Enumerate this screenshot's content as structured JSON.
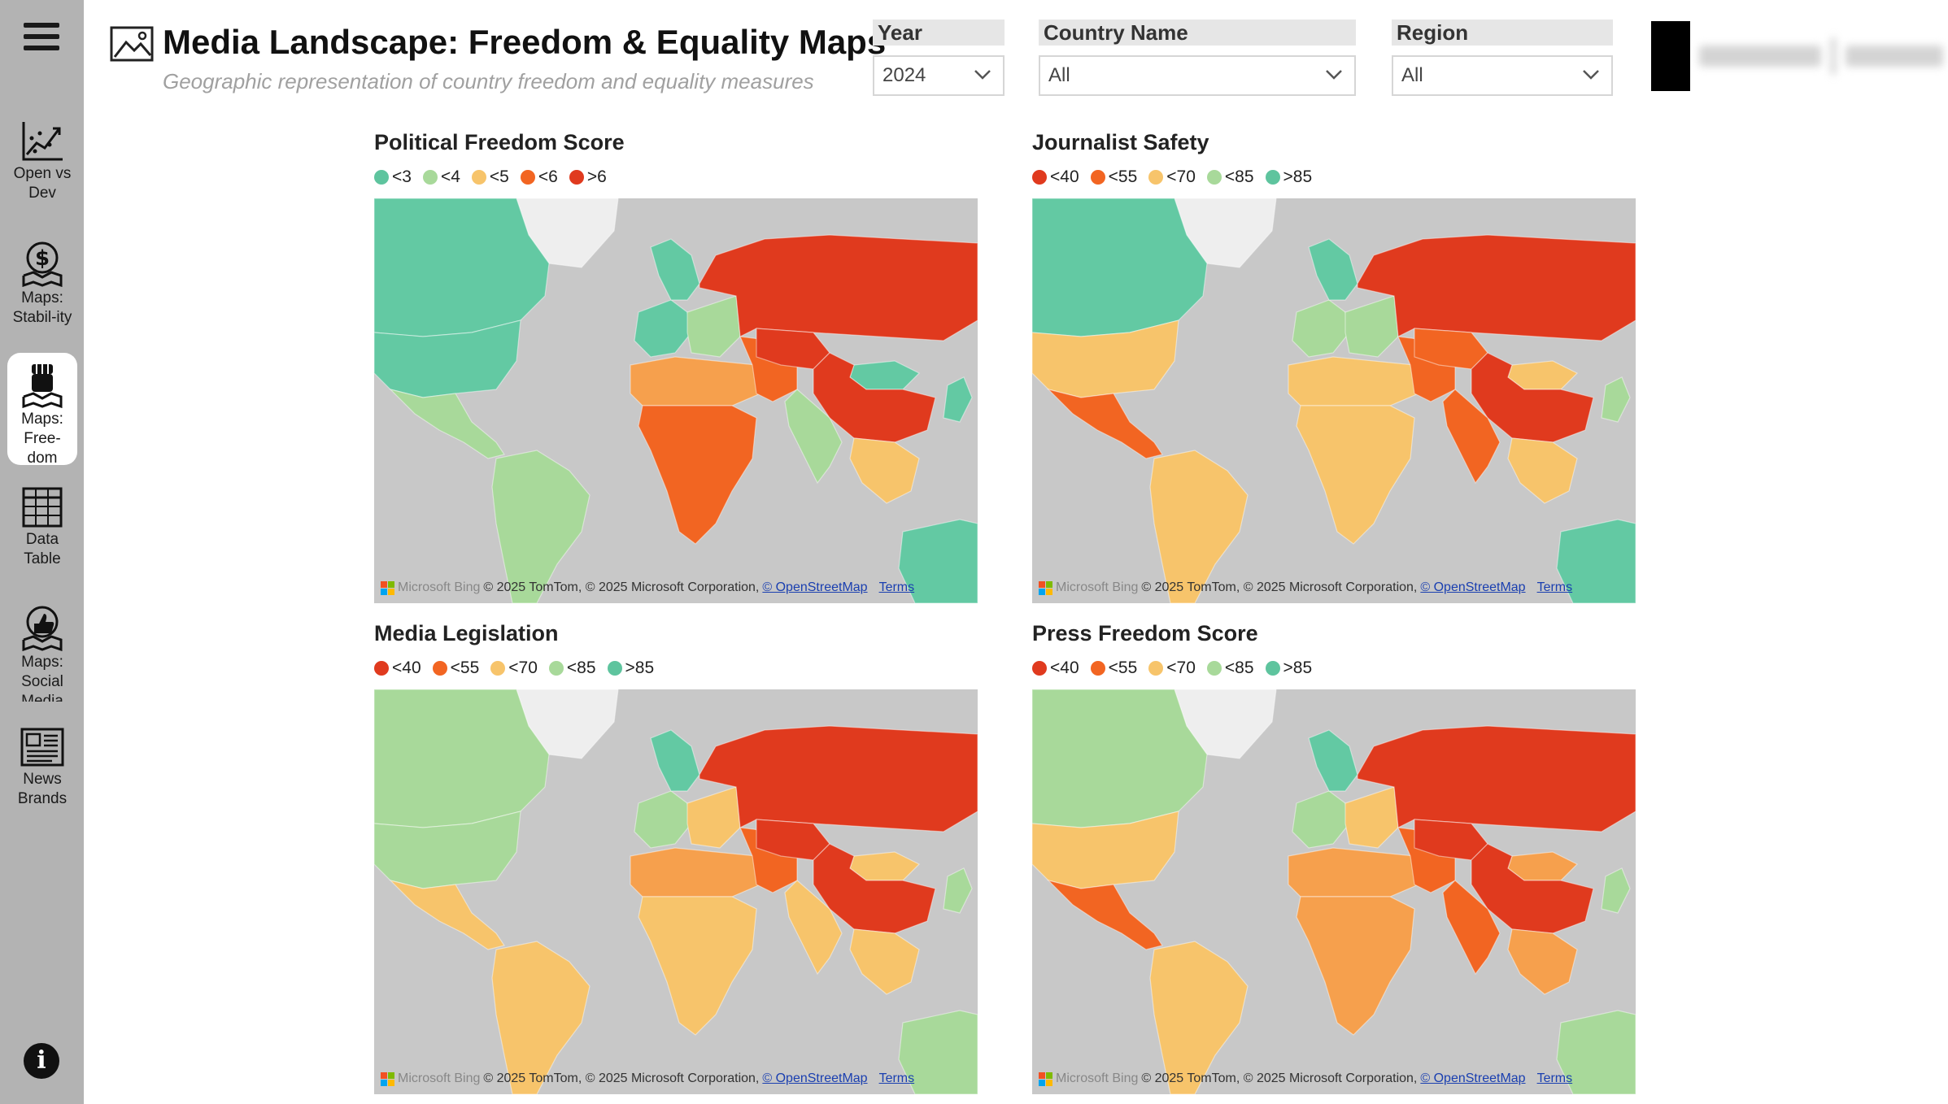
{
  "sidebar": {
    "menu_icon": "hamburger-menu-icon",
    "items": [
      {
        "label": "Open vs Dev",
        "icon": "chart-trend-icon",
        "active": false
      },
      {
        "label": "Maps: Stabil-ity",
        "icon": "dollar-map-icon",
        "active": false
      },
      {
        "label": "Maps: Free-dom",
        "icon": "fist-map-icon",
        "active": true
      },
      {
        "label": "Data Table",
        "icon": "table-grid-icon",
        "active": false
      },
      {
        "label": "Maps: Social Media",
        "icon": "thumbs-up-map-icon",
        "active": false
      },
      {
        "label": "News Brands",
        "icon": "newspaper-icon",
        "active": false
      }
    ],
    "info_icon": "info-icon",
    "info_glyph": "i"
  },
  "header": {
    "title": "Media Landscape: Freedom & Equality Maps",
    "subtitle": "Geographic representation of country freedom and equality measures",
    "title_icon": "image-icon"
  },
  "filters": {
    "year": {
      "label": "Year",
      "value": "2024"
    },
    "country": {
      "label": "Country Name",
      "value": "All"
    },
    "region": {
      "label": "Region",
      "value": "All"
    }
  },
  "colors": {
    "sidebar": "#b3b3b3",
    "dark_red": "#e03a1e",
    "orange_red": "#f26522",
    "orange": "#f6a04d",
    "yellow": "#f7c46b",
    "light_green": "#a8d99a",
    "teal_green": "#63c9a3",
    "ocean": "#c8c8c8",
    "ice": "#eeeeee"
  },
  "attribution": {
    "brand": "Microsoft Bing",
    "text": "© 2025 TomTom, © 2025 Microsoft Corporation,",
    "osm": "© OpenStreetMap",
    "terms": "Terms"
  },
  "panels": [
    {
      "title": "Political Freedom Score",
      "legend": [
        {
          "label": "<3",
          "color": "#5ec49e"
        },
        {
          "label": "<4",
          "color": "#a8d99a"
        },
        {
          "label": "<5",
          "color": "#f7c46b"
        },
        {
          "label": "<6",
          "color": "#f26522"
        },
        {
          "label": ">6",
          "color": "#e03a1e"
        }
      ]
    },
    {
      "title": "Journalist Safety",
      "legend": [
        {
          "label": "<40",
          "color": "#e03a1e"
        },
        {
          "label": "<55",
          "color": "#f26522"
        },
        {
          "label": "<70",
          "color": "#f7c46b"
        },
        {
          "label": "<85",
          "color": "#a8d99a"
        },
        {
          "label": ">85",
          "color": "#5ec49e"
        }
      ]
    },
    {
      "title": "Media Legislation",
      "legend": [
        {
          "label": "<40",
          "color": "#e03a1e"
        },
        {
          "label": "<55",
          "color": "#f26522"
        },
        {
          "label": "<70",
          "color": "#f7c46b"
        },
        {
          "label": "<85",
          "color": "#a8d99a"
        },
        {
          "label": ">85",
          "color": "#5ec49e"
        }
      ]
    },
    {
      "title": "Press Freedom Score",
      "legend": [
        {
          "label": "<40",
          "color": "#e03a1e"
        },
        {
          "label": "<55",
          "color": "#f26522"
        },
        {
          "label": "<70",
          "color": "#f7c46b"
        },
        {
          "label": "<85",
          "color": "#a8d99a"
        },
        {
          "label": ">85",
          "color": "#5ec49e"
        }
      ]
    }
  ]
}
